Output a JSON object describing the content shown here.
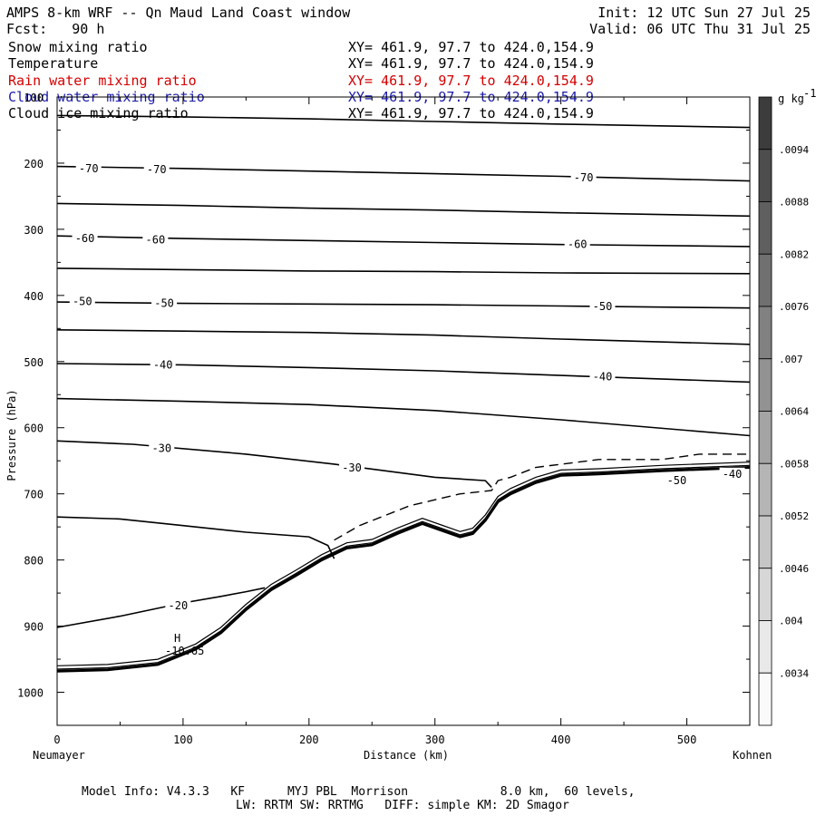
{
  "header": {
    "title_left": "AMPS 8-km WRF -- Qn Maud Land Coast window",
    "forecast": "Fcst:   90 h",
    "init": "Init: 12 UTC Sun 27 Jul 25",
    "valid": "Valid: 06 UTC Thu 31 Jul 25"
  },
  "fields": [
    {
      "name": "Snow mixing ratio",
      "xy": "XY= 461.9, 97.7 to 424.0,154.9",
      "color": "#000000"
    },
    {
      "name": "Temperature",
      "xy": "XY= 461.9, 97.7 to 424.0,154.9",
      "color": "#000000"
    },
    {
      "name": "Rain water mixing ratio",
      "xy": "XY= 461.9, 97.7 to 424.0,154.9",
      "color": "#d40000"
    },
    {
      "name": "Cloud water mixing ratio",
      "xy": "XY= 461.9, 97.7 to 424.0,154.9",
      "color": "#1a1aa8"
    },
    {
      "name": "Cloud ice mixing ratio",
      "xy": "XY= 461.9, 97.7 to 424.0,154.9",
      "color": "#000000"
    }
  ],
  "footer": {
    "line1": "Model Info: V4.3.3   KF      MYJ PBL  Morrison             8.0 km,  60 levels,",
    "line2": "LW: RRTM SW: RRTMG   DIFF: simple KM: 2D Smagor"
  },
  "chart_data": {
    "type": "contour cross-section",
    "xlabel": "Distance (km)",
    "ylabel": "Pressure (hPa)",
    "x_start_label": "Neumayer",
    "x_end_label": "Kohnen",
    "xlim": [
      0,
      550
    ],
    "ylim": [
      1050,
      100
    ],
    "x_ticks": [
      0,
      100,
      200,
      300,
      400,
      500
    ],
    "y_ticks": [
      100,
      200,
      300,
      400,
      500,
      600,
      700,
      800,
      900,
      1000
    ],
    "colorbar": {
      "unit": "g kg",
      "unit_exponent": "-1",
      "labels": [
        ".0094",
        ".0088",
        ".0082",
        ".0076",
        ".007",
        ".0064",
        ".0058",
        ".0052",
        ".0046",
        ".004",
        ".0034"
      ]
    },
    "extremum": {
      "symbol": "H",
      "value": "-10.65",
      "x": 96,
      "p": 948
    },
    "isotherms": [
      {
        "x": [
          0,
          100,
          200,
          300,
          400,
          550
        ],
        "p": [
          128,
          130,
          133,
          137,
          141,
          146
        ]
      },
      {
        "x": [
          0,
          100,
          200,
          300,
          400,
          550
        ],
        "p": [
          205,
          208,
          212,
          216,
          220,
          227
        ]
      },
      {
        "x": [
          0,
          100,
          200,
          300,
          400,
          550
        ],
        "p": [
          261,
          264,
          268,
          271,
          275,
          280
        ]
      },
      {
        "x": [
          0,
          100,
          200,
          300,
          400,
          550
        ],
        "p": [
          310,
          314,
          317,
          320,
          323,
          326
        ]
      },
      {
        "x": [
          0,
          100,
          200,
          300,
          400,
          550
        ],
        "p": [
          359,
          361,
          363,
          364,
          366,
          367
        ]
      },
      {
        "x": [
          0,
          100,
          200,
          300,
          400,
          550
        ],
        "p": [
          410,
          412,
          413,
          414,
          416,
          419
        ]
      },
      {
        "x": [
          0,
          100,
          200,
          300,
          400,
          550
        ],
        "p": [
          452,
          454,
          456,
          460,
          466,
          474
        ]
      },
      {
        "x": [
          0,
          100,
          200,
          300,
          400,
          550
        ],
        "p": [
          503,
          505,
          509,
          514,
          521,
          531
        ]
      },
      {
        "x": [
          0,
          100,
          200,
          300,
          400,
          550
        ],
        "p": [
          556,
          560,
          565,
          574,
          588,
          612
        ]
      },
      {
        "x": [
          0,
          60,
          150,
          220,
          260,
          300,
          340,
          345
        ],
        "p": [
          620,
          625,
          640,
          655,
          665,
          675,
          680,
          690
        ]
      },
      {
        "x": [
          0,
          50,
          100,
          150,
          200,
          215,
          220
        ],
        "p": [
          735,
          738,
          748,
          758,
          765,
          778,
          798
        ]
      },
      {
        "x": [
          0,
          50,
          100,
          130,
          150,
          165
        ],
        "p": [
          902,
          885,
          865,
          855,
          848,
          842
        ]
      }
    ],
    "contour_labels": [
      {
        "text": "-70",
        "x": 25,
        "p": 208
      },
      {
        "text": "-70",
        "x": 79,
        "p": 210
      },
      {
        "text": "-70",
        "x": 418,
        "p": 222
      },
      {
        "text": "-60",
        "x": 22,
        "p": 314
      },
      {
        "text": "-60",
        "x": 78,
        "p": 316
      },
      {
        "text": "-60",
        "x": 413,
        "p": 323
      },
      {
        "text": "-50",
        "x": 20,
        "p": 409
      },
      {
        "text": "-50",
        "x": 85,
        "p": 412
      },
      {
        "text": "-50",
        "x": 433,
        "p": 417
      },
      {
        "text": "-40",
        "x": 84,
        "p": 505
      },
      {
        "text": "-40",
        "x": 433,
        "p": 523
      },
      {
        "text": "-30",
        "x": 83,
        "p": 631
      },
      {
        "text": "-30",
        "x": 234,
        "p": 661
      },
      {
        "text": "-20",
        "x": 96,
        "p": 869
      },
      {
        "text": "-50",
        "x": 492,
        "p": 680
      },
      {
        "text": "-40",
        "x": 536,
        "p": 670
      }
    ],
    "terrain": {
      "x": [
        0,
        40,
        80,
        110,
        130,
        150,
        170,
        190,
        210,
        230,
        250,
        270,
        290,
        305,
        320,
        330,
        340,
        350,
        360,
        380,
        400,
        430,
        480,
        550
      ],
      "p": [
        968,
        966,
        958,
        935,
        910,
        875,
        845,
        823,
        800,
        782,
        777,
        760,
        745,
        755,
        765,
        760,
        740,
        712,
        700,
        683,
        672,
        670,
        665,
        660
      ]
    },
    "dashed_contour": {
      "x": [
        220,
        240,
        280,
        320,
        345,
        350,
        360,
        380,
        430,
        480,
        510,
        550
      ],
      "p": [
        770,
        748,
        718,
        700,
        695,
        680,
        675,
        660,
        648,
        648,
        640,
        640
      ]
    }
  }
}
